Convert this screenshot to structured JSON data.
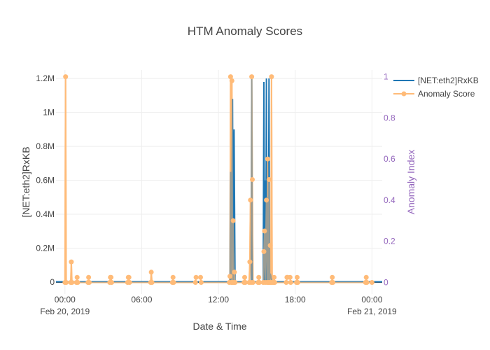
{
  "chart_data": {
    "type": "line",
    "title": "HTM Anomaly Scores",
    "xlabel": "Date & Time",
    "ylabel": "[NET:eth2]RxKB",
    "y2label": "Anomaly Index",
    "x_range_hours": [
      -0.7,
      24.8
    ],
    "ylim": [
      -70000,
      1250000
    ],
    "y2lim": [
      -0.056,
      1.0325
    ],
    "x_ticks": [
      {
        "hour": 0,
        "label": "00:00",
        "sublabel": "Feb 20, 2019"
      },
      {
        "hour": 6,
        "label": "06:00",
        "sublabel": ""
      },
      {
        "hour": 12,
        "label": "12:00",
        "sublabel": ""
      },
      {
        "hour": 18,
        "label": "18:00",
        "sublabel": ""
      },
      {
        "hour": 24,
        "label": "00:00",
        "sublabel": "Feb 21, 2019"
      }
    ],
    "y_ticks": [
      {
        "value": 0,
        "label": "0"
      },
      {
        "value": 200000,
        "label": "0.2M"
      },
      {
        "value": 400000,
        "label": "0.4M"
      },
      {
        "value": 600000,
        "label": "0.6M"
      },
      {
        "value": 800000,
        "label": "0.8M"
      },
      {
        "value": 1000000,
        "label": "1M"
      },
      {
        "value": 1200000,
        "label": "1.2M"
      }
    ],
    "y2_ticks": [
      {
        "value": 0,
        "label": "0"
      },
      {
        "value": 0.2,
        "label": "0.2"
      },
      {
        "value": 0.4,
        "label": "0.4"
      },
      {
        "value": 0.6,
        "label": "0.6"
      },
      {
        "value": 0.8,
        "label": "0.8"
      },
      {
        "value": 1,
        "label": "1"
      }
    ],
    "legend_position": "top-right",
    "series": [
      {
        "name": "[NET:eth2]RxKB",
        "color": "#1f77b4",
        "axis": "y",
        "points": [
          [
            -0.7,
            2000
          ],
          [
            12.9,
            2000
          ],
          [
            12.95,
            650000
          ],
          [
            13.0,
            3000
          ],
          [
            13.1,
            1080000
          ],
          [
            13.15,
            2000
          ],
          [
            13.22,
            900000
          ],
          [
            13.3,
            2000
          ],
          [
            14.55,
            2000
          ],
          [
            14.6,
            1200000
          ],
          [
            14.65,
            2000
          ],
          [
            15.5,
            2000
          ],
          [
            15.55,
            1180000
          ],
          [
            15.6,
            2000
          ],
          [
            15.65,
            600000
          ],
          [
            15.7,
            2000
          ],
          [
            15.75,
            1200000
          ],
          [
            15.8,
            3000
          ],
          [
            15.85,
            500000
          ],
          [
            15.9,
            2000
          ],
          [
            15.95,
            1200000
          ],
          [
            16.0,
            2000
          ],
          [
            16.05,
            50000
          ],
          [
            16.2,
            2000
          ],
          [
            24.8,
            2000
          ]
        ]
      },
      {
        "name": "Anomaly Score",
        "color": "#ffbb78",
        "axis": "y2",
        "points": [
          [
            0.0,
            0.0
          ],
          [
            0.05,
            1.0
          ],
          [
            0.1,
            0.0
          ],
          [
            0.45,
            0.0
          ],
          [
            0.5,
            0.1
          ],
          [
            0.55,
            0.0
          ],
          [
            0.9,
            0.0
          ],
          [
            0.95,
            0.025
          ],
          [
            1.0,
            0.0
          ],
          [
            1.8,
            0.0
          ],
          [
            1.85,
            0.025
          ],
          [
            1.9,
            0.0
          ],
          [
            3.5,
            0.0
          ],
          [
            3.55,
            0.025
          ],
          [
            3.6,
            0.025
          ],
          [
            3.65,
            0.0
          ],
          [
            4.9,
            0.0
          ],
          [
            4.95,
            0.025
          ],
          [
            5.0,
            0.025
          ],
          [
            5.05,
            0.0
          ],
          [
            6.7,
            0.0
          ],
          [
            6.75,
            0.05
          ],
          [
            6.8,
            0.0
          ],
          [
            8.4,
            0.0
          ],
          [
            8.45,
            0.025
          ],
          [
            8.5,
            0.0
          ],
          [
            10.2,
            0.0
          ],
          [
            10.25,
            0.025
          ],
          [
            10.6,
            0.025
          ],
          [
            10.65,
            0.0
          ],
          [
            12.85,
            0.0
          ],
          [
            12.9,
            0.03
          ],
          [
            12.95,
            1.0
          ],
          [
            13.0,
            0.0
          ],
          [
            13.05,
            0.98
          ],
          [
            13.1,
            0.0
          ],
          [
            13.15,
            0.3
          ],
          [
            13.2,
            0.0
          ],
          [
            13.25,
            0.05
          ],
          [
            13.3,
            0.0
          ],
          [
            14.0,
            0.0
          ],
          [
            14.05,
            0.025
          ],
          [
            14.1,
            0.0
          ],
          [
            14.4,
            0.0
          ],
          [
            14.45,
            0.1
          ],
          [
            14.5,
            0.4
          ],
          [
            14.55,
            0.0
          ],
          [
            14.6,
            1.0
          ],
          [
            14.65,
            0.5
          ],
          [
            14.7,
            0.0
          ],
          [
            15.1,
            0.0
          ],
          [
            15.15,
            0.025
          ],
          [
            15.2,
            0.0
          ],
          [
            15.5,
            0.0
          ],
          [
            15.55,
            0.15
          ],
          [
            15.6,
            0.25
          ],
          [
            15.65,
            0.0
          ],
          [
            15.75,
            0.4
          ],
          [
            15.8,
            0.0
          ],
          [
            15.85,
            0.6
          ],
          [
            15.9,
            0.0
          ],
          [
            15.95,
            0.5
          ],
          [
            16.0,
            0.0
          ],
          [
            16.05,
            0.18
          ],
          [
            16.1,
            0.0
          ],
          [
            16.15,
            1.0
          ],
          [
            16.2,
            0.0
          ],
          [
            16.3,
            0.0
          ],
          [
            16.35,
            0.025
          ],
          [
            16.4,
            0.0
          ],
          [
            17.3,
            0.0
          ],
          [
            17.35,
            0.025
          ],
          [
            17.4,
            0.025
          ],
          [
            17.6,
            0.025
          ],
          [
            17.65,
            0.0
          ],
          [
            18.1,
            0.0
          ],
          [
            18.15,
            0.025
          ],
          [
            18.2,
            0.0
          ],
          [
            20.85,
            0.0
          ],
          [
            20.9,
            0.025
          ],
          [
            20.95,
            0.0
          ],
          [
            23.5,
            0.0
          ],
          [
            23.55,
            0.025
          ],
          [
            23.6,
            0.0
          ],
          [
            24.0,
            0.0
          ]
        ]
      }
    ]
  }
}
